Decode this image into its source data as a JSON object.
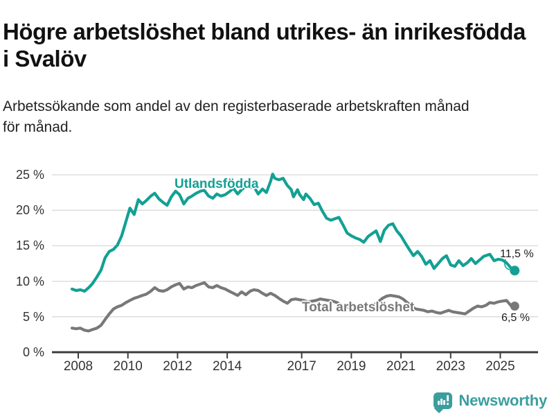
{
  "title": "Högre arbetslöshet bland utrikes- än inrikesfödda i Svalöv",
  "subtitle": "Arbetssökande som andel av den registerbaserade arbetskraften månad för månad.",
  "subtitle_lines": [
    "Arbetssökande som andel av den registerbaserade arbetskraften månad",
    "för månad."
  ],
  "colors": {
    "foreign_born": "#13a094",
    "total": "#787878",
    "grid": "#d9d9d9",
    "axis": "#3c3c3c",
    "tick_text": "#333333",
    "title_text": "#111111",
    "logo": "#3b9e9e"
  },
  "branding": {
    "logo_text": "Newsworthy",
    "logo_icon": "bar-chart-speech-bubble-icon"
  },
  "chart_data": {
    "type": "line",
    "title": "Högre arbetslöshet bland utrikes- än inrikesfödda i Svalöv",
    "xlabel": "",
    "ylabel": "",
    "ylim": [
      0,
      25.5
    ],
    "xlim": [
      2007.7,
      2026.3
    ],
    "grid": "horizontal",
    "legend_position": "inline-labels",
    "y_ticks": [
      {
        "value": 0,
        "label": "0 %"
      },
      {
        "value": 5,
        "label": "5 %"
      },
      {
        "value": 10,
        "label": "10 %"
      },
      {
        "value": 15,
        "label": "15 %"
      },
      {
        "value": 20,
        "label": "20 %"
      },
      {
        "value": 25,
        "label": "25 %"
      }
    ],
    "x_ticks": [
      {
        "value": 2008,
        "label": "2008"
      },
      {
        "value": 2010,
        "label": "2010"
      },
      {
        "value": 2012,
        "label": "2012"
      },
      {
        "value": 2014,
        "label": "2014"
      },
      {
        "value": 2017,
        "label": "2017"
      },
      {
        "value": 2019,
        "label": "2019"
      },
      {
        "value": 2021,
        "label": "2021"
      },
      {
        "value": 2023,
        "label": "2023"
      },
      {
        "value": 2025,
        "label": "2025"
      }
    ],
    "series": [
      {
        "name": "Utlandsfödda",
        "color_key": "foreign_born",
        "end_label": "11,5 %",
        "end_value": 11.5,
        "points": [
          [
            2007.75,
            8.9
          ],
          [
            2007.92,
            8.7
          ],
          [
            2008.08,
            8.8
          ],
          [
            2008.25,
            8.6
          ],
          [
            2008.42,
            9.1
          ],
          [
            2008.58,
            9.7
          ],
          [
            2008.75,
            10.6
          ],
          [
            2008.92,
            11.6
          ],
          [
            2009.08,
            13.3
          ],
          [
            2009.25,
            14.2
          ],
          [
            2009.42,
            14.5
          ],
          [
            2009.58,
            15.1
          ],
          [
            2009.75,
            16.4
          ],
          [
            2009.92,
            18.4
          ],
          [
            2010.08,
            20.3
          ],
          [
            2010.25,
            19.4
          ],
          [
            2010.42,
            21.5
          ],
          [
            2010.58,
            20.9
          ],
          [
            2010.75,
            21.4
          ],
          [
            2010.92,
            22.0
          ],
          [
            2011.08,
            22.4
          ],
          [
            2011.25,
            21.6
          ],
          [
            2011.42,
            21.1
          ],
          [
            2011.58,
            20.7
          ],
          [
            2011.75,
            21.9
          ],
          [
            2011.92,
            22.7
          ],
          [
            2012.08,
            22.2
          ],
          [
            2012.25,
            20.9
          ],
          [
            2012.42,
            21.7
          ],
          [
            2012.58,
            22.0
          ],
          [
            2012.75,
            22.4
          ],
          [
            2012.92,
            22.7
          ],
          [
            2013.08,
            22.8
          ],
          [
            2013.25,
            22.0
          ],
          [
            2013.42,
            21.7
          ],
          [
            2013.58,
            22.3
          ],
          [
            2013.75,
            22.0
          ],
          [
            2013.92,
            22.2
          ],
          [
            2014.08,
            22.6
          ],
          [
            2014.25,
            23.1
          ],
          [
            2014.42,
            22.3
          ],
          [
            2014.58,
            22.9
          ],
          [
            2014.75,
            23.4
          ],
          [
            2014.92,
            23.2
          ],
          [
            2015.08,
            23.3
          ],
          [
            2015.25,
            22.3
          ],
          [
            2015.42,
            23.0
          ],
          [
            2015.58,
            22.5
          ],
          [
            2015.75,
            24.1
          ],
          [
            2015.83,
            25.1
          ],
          [
            2015.92,
            24.5
          ],
          [
            2016.08,
            24.3
          ],
          [
            2016.25,
            24.5
          ],
          [
            2016.42,
            23.5
          ],
          [
            2016.58,
            22.9
          ],
          [
            2016.67,
            21.9
          ],
          [
            2016.83,
            22.9
          ],
          [
            2016.92,
            22.2
          ],
          [
            2017.08,
            21.5
          ],
          [
            2017.17,
            22.3
          ],
          [
            2017.33,
            21.7
          ],
          [
            2017.5,
            20.8
          ],
          [
            2017.67,
            21.0
          ],
          [
            2017.83,
            19.9
          ],
          [
            2018.0,
            18.9
          ],
          [
            2018.17,
            18.6
          ],
          [
            2018.33,
            18.8
          ],
          [
            2018.5,
            19.0
          ],
          [
            2018.67,
            17.9
          ],
          [
            2018.83,
            16.8
          ],
          [
            2019.0,
            16.4
          ],
          [
            2019.17,
            16.1
          ],
          [
            2019.33,
            15.9
          ],
          [
            2019.5,
            15.5
          ],
          [
            2019.67,
            16.3
          ],
          [
            2019.83,
            16.7
          ],
          [
            2020.0,
            17.1
          ],
          [
            2020.17,
            15.6
          ],
          [
            2020.33,
            17.2
          ],
          [
            2020.5,
            17.9
          ],
          [
            2020.67,
            18.1
          ],
          [
            2020.83,
            17.1
          ],
          [
            2021.0,
            16.4
          ],
          [
            2021.17,
            15.4
          ],
          [
            2021.33,
            14.5
          ],
          [
            2021.5,
            13.6
          ],
          [
            2021.67,
            14.2
          ],
          [
            2021.83,
            13.5
          ],
          [
            2022.0,
            12.4
          ],
          [
            2022.17,
            12.9
          ],
          [
            2022.33,
            11.8
          ],
          [
            2022.5,
            12.5
          ],
          [
            2022.67,
            13.2
          ],
          [
            2022.83,
            13.6
          ],
          [
            2023.0,
            12.3
          ],
          [
            2023.17,
            12.1
          ],
          [
            2023.33,
            12.9
          ],
          [
            2023.5,
            12.2
          ],
          [
            2023.67,
            12.6
          ],
          [
            2023.83,
            13.2
          ],
          [
            2024.0,
            12.5
          ],
          [
            2024.17,
            13.0
          ],
          [
            2024.33,
            13.5
          ],
          [
            2024.58,
            13.8
          ],
          [
            2024.75,
            12.9
          ],
          [
            2024.92,
            13.1
          ],
          [
            2025.08,
            13.0
          ],
          [
            2025.25,
            12.6
          ],
          [
            2025.42,
            11.9
          ],
          [
            2025.58,
            11.5
          ]
        ]
      },
      {
        "name": "Total arbetslöshet",
        "color_key": "total",
        "end_label": "6,5 %",
        "end_value": 6.5,
        "points": [
          [
            2007.75,
            3.4
          ],
          [
            2007.92,
            3.3
          ],
          [
            2008.08,
            3.4
          ],
          [
            2008.25,
            3.1
          ],
          [
            2008.42,
            3.0
          ],
          [
            2008.58,
            3.2
          ],
          [
            2008.75,
            3.4
          ],
          [
            2008.92,
            3.8
          ],
          [
            2009.08,
            4.6
          ],
          [
            2009.25,
            5.4
          ],
          [
            2009.42,
            6.1
          ],
          [
            2009.58,
            6.4
          ],
          [
            2009.75,
            6.6
          ],
          [
            2009.92,
            7.0
          ],
          [
            2010.08,
            7.3
          ],
          [
            2010.25,
            7.6
          ],
          [
            2010.42,
            7.8
          ],
          [
            2010.58,
            8.0
          ],
          [
            2010.75,
            8.2
          ],
          [
            2010.92,
            8.6
          ],
          [
            2011.08,
            9.1
          ],
          [
            2011.25,
            8.7
          ],
          [
            2011.42,
            8.6
          ],
          [
            2011.58,
            8.8
          ],
          [
            2011.75,
            9.2
          ],
          [
            2011.92,
            9.5
          ],
          [
            2012.08,
            9.7
          ],
          [
            2012.25,
            8.9
          ],
          [
            2012.42,
            9.2
          ],
          [
            2012.58,
            9.1
          ],
          [
            2012.75,
            9.4
          ],
          [
            2012.92,
            9.6
          ],
          [
            2013.08,
            9.8
          ],
          [
            2013.25,
            9.2
          ],
          [
            2013.42,
            9.1
          ],
          [
            2013.58,
            9.4
          ],
          [
            2013.75,
            9.1
          ],
          [
            2013.92,
            8.9
          ],
          [
            2014.08,
            8.6
          ],
          [
            2014.25,
            8.3
          ],
          [
            2014.42,
            8.0
          ],
          [
            2014.58,
            8.5
          ],
          [
            2014.75,
            8.1
          ],
          [
            2014.92,
            8.6
          ],
          [
            2015.08,
            8.8
          ],
          [
            2015.25,
            8.7
          ],
          [
            2015.42,
            8.3
          ],
          [
            2015.58,
            8.0
          ],
          [
            2015.75,
            8.3
          ],
          [
            2015.92,
            8.0
          ],
          [
            2016.08,
            7.6
          ],
          [
            2016.25,
            7.2
          ],
          [
            2016.42,
            6.9
          ],
          [
            2016.58,
            7.4
          ],
          [
            2016.75,
            7.5
          ],
          [
            2016.92,
            7.4
          ],
          [
            2017.08,
            7.3
          ],
          [
            2017.25,
            7.1
          ],
          [
            2017.42,
            7.2
          ],
          [
            2017.58,
            7.3
          ],
          [
            2017.75,
            7.5
          ],
          [
            2017.92,
            7.4
          ],
          [
            2018.08,
            7.3
          ],
          [
            2018.25,
            7.2
          ],
          [
            2018.42,
            7.0
          ],
          [
            2018.58,
            6.7
          ],
          [
            2018.75,
            6.4
          ],
          [
            2018.92,
            6.3
          ],
          [
            2019.08,
            6.5
          ],
          [
            2019.25,
            6.4
          ],
          [
            2019.42,
            6.3
          ],
          [
            2019.58,
            6.5
          ],
          [
            2019.75,
            6.6
          ],
          [
            2019.92,
            6.7
          ],
          [
            2020.08,
            7.1
          ],
          [
            2020.25,
            7.6
          ],
          [
            2020.42,
            7.9
          ],
          [
            2020.58,
            8.0
          ],
          [
            2020.75,
            7.9
          ],
          [
            2020.92,
            7.8
          ],
          [
            2021.08,
            7.5
          ],
          [
            2021.25,
            7.0
          ],
          [
            2021.42,
            6.5
          ],
          [
            2021.58,
            6.1
          ],
          [
            2021.75,
            6.0
          ],
          [
            2021.92,
            5.9
          ],
          [
            2022.08,
            5.7
          ],
          [
            2022.25,
            5.8
          ],
          [
            2022.42,
            5.6
          ],
          [
            2022.58,
            5.5
          ],
          [
            2022.75,
            5.7
          ],
          [
            2022.92,
            5.9
          ],
          [
            2023.08,
            5.7
          ],
          [
            2023.25,
            5.6
          ],
          [
            2023.42,
            5.5
          ],
          [
            2023.58,
            5.4
          ],
          [
            2023.75,
            5.8
          ],
          [
            2023.92,
            6.2
          ],
          [
            2024.08,
            6.5
          ],
          [
            2024.25,
            6.4
          ],
          [
            2024.42,
            6.6
          ],
          [
            2024.58,
            7.0
          ],
          [
            2024.75,
            6.9
          ],
          [
            2024.92,
            7.1
          ],
          [
            2025.08,
            7.2
          ],
          [
            2025.25,
            7.3
          ],
          [
            2025.42,
            6.6
          ],
          [
            2025.58,
            6.5
          ]
        ]
      }
    ]
  }
}
